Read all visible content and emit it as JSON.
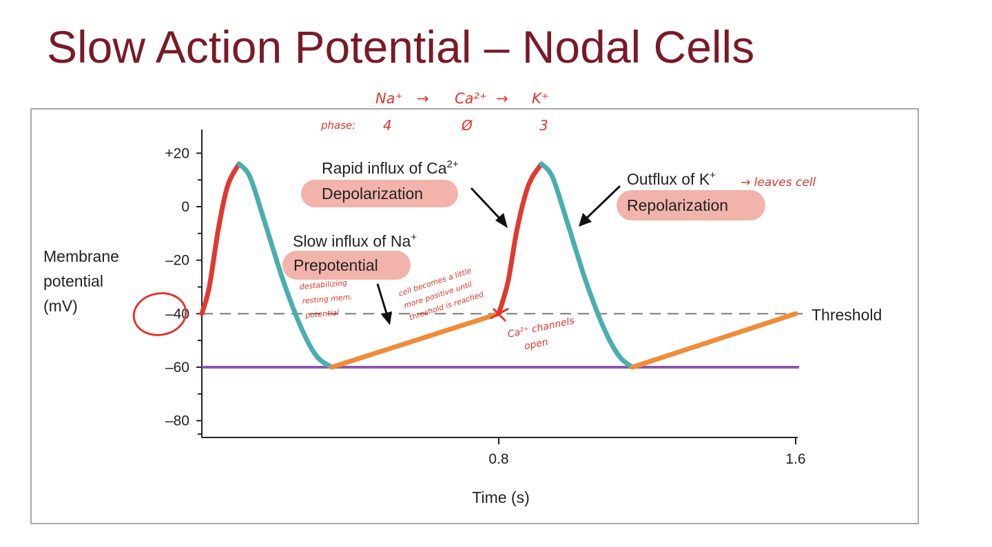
{
  "slide": {
    "title": "Slow Action Potential – Nodal Cells"
  },
  "chart_data": {
    "type": "line",
    "title": "",
    "xlabel": "Time (s)",
    "ylabel": "Membrane potential (mV)",
    "xlim": [
      0,
      1.6
    ],
    "ylim": [
      -88,
      30
    ],
    "x_ticks": [
      "0.8",
      "1.6"
    ],
    "x_tick_values": [
      0.8,
      1.6
    ],
    "y_ticks": [
      "+20",
      "0",
      "–20",
      "–40",
      "–60",
      "–80"
    ],
    "y_tick_values": [
      20,
      0,
      -20,
      -40,
      -60,
      -80
    ],
    "grid": false,
    "threshold": {
      "value": -40,
      "label": "Threshold",
      "style": "dashed",
      "color": "#777777"
    },
    "resting_line": {
      "value": -60,
      "color": "#8e55b0"
    },
    "segments": [
      {
        "phase": "depolarization",
        "color": "#e03a2f",
        "points": [
          [
            0,
            -40
          ],
          [
            0.02,
            -30
          ],
          [
            0.045,
            -8
          ],
          [
            0.07,
            8
          ],
          [
            0.1,
            16
          ]
        ]
      },
      {
        "phase": "repolarization",
        "color": "#4aaeae",
        "points": [
          [
            0.1,
            16
          ],
          [
            0.13,
            11
          ],
          [
            0.17,
            -6
          ],
          [
            0.22,
            -28
          ],
          [
            0.27,
            -46
          ],
          [
            0.31,
            -56
          ],
          [
            0.35,
            -60
          ]
        ]
      },
      {
        "phase": "prepotential",
        "color": "#ef8c3a",
        "points": [
          [
            0.35,
            -60
          ],
          [
            0.8,
            -40
          ]
        ]
      },
      {
        "phase": "depolarization",
        "color": "#e03a2f",
        "points": [
          [
            0.8,
            -40
          ],
          [
            0.825,
            -28
          ],
          [
            0.85,
            -8
          ],
          [
            0.88,
            8
          ],
          [
            0.915,
            16
          ]
        ]
      },
      {
        "phase": "repolarization",
        "color": "#4aaeae",
        "points": [
          [
            0.915,
            16
          ],
          [
            0.945,
            11
          ],
          [
            0.985,
            -6
          ],
          [
            1.035,
            -28
          ],
          [
            1.085,
            -46
          ],
          [
            1.125,
            -56
          ],
          [
            1.16,
            -60
          ]
        ]
      },
      {
        "phase": "prepotential",
        "color": "#ef8c3a",
        "points": [
          [
            1.16,
            -60
          ],
          [
            1.6,
            -40
          ]
        ]
      }
    ],
    "annotations": {
      "depol_caption": "Rapid influx of Ca",
      "depol_caption_sup": "2+",
      "depol_label": "Depolarization",
      "repol_caption": "Outflux of K",
      "repol_caption_sup": "+",
      "repol_label": "Repolarization",
      "prepot_caption": "Slow influx of Na",
      "prepot_caption_sup": "+",
      "prepot_label": "Prepotential",
      "highlight_color": "#f2b3aa"
    },
    "handwritten": {
      "ions": [
        "Na⁺",
        "→",
        "Ca²⁺",
        "→",
        "K⁺"
      ],
      "phase_label": "phase:",
      "phases": [
        "4",
        "Ø",
        "3"
      ],
      "leaves_cell": "→ leaves cell",
      "destabilizing": [
        "destabilizing",
        "resting mem.",
        "potential"
      ],
      "more_positive": [
        "cell becomes a little",
        "more positive until",
        "threshold is reached"
      ],
      "ca_channels": [
        "Ca²⁺ channels",
        "open"
      ],
      "color": "#e0352b"
    }
  }
}
